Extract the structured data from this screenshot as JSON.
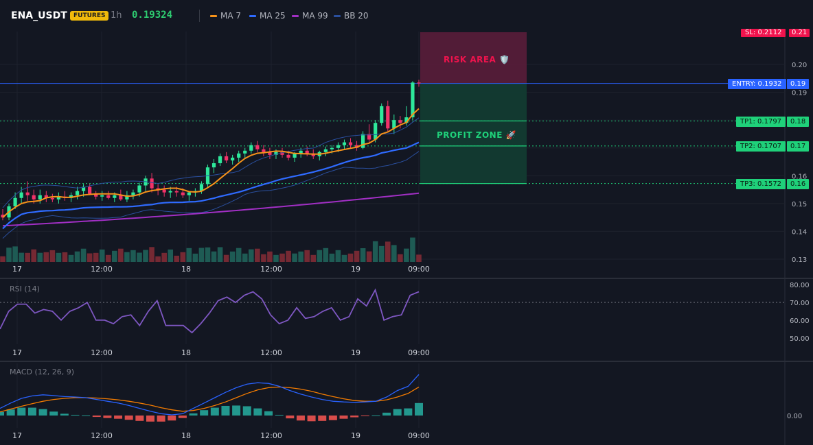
{
  "header": {
    "symbol": "ENA_USDT",
    "badge": "FUTURES",
    "timeframe": "1h",
    "last_price": "0.19324",
    "legend": [
      {
        "label": "MA 7",
        "color": "#f7931a"
      },
      {
        "label": "MA 25",
        "color": "#2f6bff"
      },
      {
        "label": "MA 99",
        "color": "#a12fc4"
      },
      {
        "label": "BB 20",
        "color": "#2a4f9e"
      }
    ]
  },
  "colors": {
    "up": "#26a69a",
    "up_bright": "#2ee89b",
    "down": "#f23269",
    "risk_zone": "#5a1d3a",
    "profit_zone": "#123b31",
    "entry": "#2962ff",
    "tp": "#1fd17a",
    "sl": "#f0134d",
    "rsi": "#7e57c2",
    "macd": "#2962ff",
    "signal": "#f57c00",
    "hist_pos": "#26a69a",
    "hist_neg": "#ef5350"
  },
  "zones": {
    "risk_label": "RISK AREA 🛡️",
    "profit_label": "PROFIT ZONE 🚀"
  },
  "levels": {
    "entry": {
      "label": "ENTRY: 0.1932",
      "value": 0.1932,
      "axis": "0.19"
    },
    "tp1": {
      "label": "TP1: 0.1797",
      "value": 0.1797,
      "axis": "0.18"
    },
    "tp2": {
      "label": "TP2: 0.1707",
      "value": 0.1707,
      "axis": "0.17"
    },
    "tp3": {
      "label": "TP3: 0.1572",
      "value": 0.1572,
      "axis": "0.16"
    },
    "sl": {
      "label": "SL: 0.2112",
      "value": 0.2112,
      "axis": "0.21"
    }
  },
  "panels": {
    "rsi_title": "RSI (14)",
    "macd_title": "MACD (12, 26, 9)"
  },
  "chart_data": [
    {
      "type": "candlestick",
      "title": "",
      "price_axis_ticks": [
        "0.20",
        "0.19",
        "0.18",
        "0.17",
        "0.16",
        "0.15",
        "0.14",
        "0.13"
      ],
      "time_axis_ticks": [
        "17",
        "12:00",
        "18",
        "12:00",
        "19",
        "09:00"
      ],
      "ylim": [
        0.13,
        0.2112
      ],
      "candles_ohlc": [
        [
          0.146,
          0.148,
          0.144,
          0.145
        ],
        [
          0.145,
          0.15,
          0.144,
          0.149
        ],
        [
          0.149,
          0.154,
          0.148,
          0.152
        ],
        [
          0.152,
          0.156,
          0.15,
          0.154
        ],
        [
          0.154,
          0.158,
          0.151,
          0.153
        ],
        [
          0.153,
          0.155,
          0.15,
          0.1515
        ],
        [
          0.1515,
          0.155,
          0.15,
          0.153
        ],
        [
          0.153,
          0.1545,
          0.1505,
          0.152
        ],
        [
          0.152,
          0.1535,
          0.1505,
          0.1515
        ],
        [
          0.1515,
          0.154,
          0.15,
          0.1525
        ],
        [
          0.1525,
          0.1545,
          0.151,
          0.152
        ],
        [
          0.152,
          0.154,
          0.1505,
          0.153
        ],
        [
          0.153,
          0.156,
          0.1515,
          0.1545
        ],
        [
          0.1545,
          0.157,
          0.1525,
          0.156
        ],
        [
          0.156,
          0.157,
          0.153,
          0.1535
        ],
        [
          0.1535,
          0.1545,
          0.1515,
          0.1525
        ],
        [
          0.1525,
          0.1545,
          0.151,
          0.153
        ],
        [
          0.153,
          0.1545,
          0.1515,
          0.152
        ],
        [
          0.152,
          0.154,
          0.1505,
          0.153
        ],
        [
          0.153,
          0.155,
          0.151,
          0.1515
        ],
        [
          0.1515,
          0.1545,
          0.1505,
          0.153
        ],
        [
          0.153,
          0.155,
          0.1515,
          0.154
        ],
        [
          0.154,
          0.1575,
          0.1525,
          0.1565
        ],
        [
          0.1565,
          0.16,
          0.1545,
          0.159
        ],
        [
          0.159,
          0.161,
          0.154,
          0.1555
        ],
        [
          0.1555,
          0.157,
          0.153,
          0.155
        ],
        [
          0.155,
          0.1565,
          0.1525,
          0.154
        ],
        [
          0.154,
          0.156,
          0.152,
          0.1545
        ],
        [
          0.1545,
          0.156,
          0.1525,
          0.154
        ],
        [
          0.154,
          0.1555,
          0.152,
          0.153
        ],
        [
          0.153,
          0.1545,
          0.151,
          0.154
        ],
        [
          0.154,
          0.1555,
          0.1525,
          0.1545
        ],
        [
          0.1545,
          0.158,
          0.1535,
          0.157
        ],
        [
          0.157,
          0.164,
          0.156,
          0.163
        ],
        [
          0.163,
          0.166,
          0.161,
          0.1645
        ],
        [
          0.1645,
          0.168,
          0.1635,
          0.167
        ],
        [
          0.167,
          0.1685,
          0.1645,
          0.1655
        ],
        [
          0.1655,
          0.1675,
          0.164,
          0.1665
        ],
        [
          0.1665,
          0.169,
          0.165,
          0.168
        ],
        [
          0.168,
          0.17,
          0.166,
          0.169
        ],
        [
          0.169,
          0.172,
          0.168,
          0.171
        ],
        [
          0.171,
          0.1725,
          0.1685,
          0.1695
        ],
        [
          0.1695,
          0.171,
          0.167,
          0.1685
        ],
        [
          0.1685,
          0.17,
          0.166,
          0.1675
        ],
        [
          0.1675,
          0.1695,
          0.166,
          0.1685
        ],
        [
          0.1685,
          0.17,
          0.1665,
          0.1675
        ],
        [
          0.1675,
          0.169,
          0.1655,
          0.1665
        ],
        [
          0.1665,
          0.1685,
          0.165,
          0.168
        ],
        [
          0.168,
          0.17,
          0.1665,
          0.169
        ],
        [
          0.169,
          0.1705,
          0.167,
          0.168
        ],
        [
          0.168,
          0.1695,
          0.166,
          0.167
        ],
        [
          0.167,
          0.169,
          0.1655,
          0.1685
        ],
        [
          0.1685,
          0.1705,
          0.167,
          0.1695
        ],
        [
          0.1695,
          0.171,
          0.168,
          0.17
        ],
        [
          0.17,
          0.172,
          0.1685,
          0.171
        ],
        [
          0.171,
          0.173,
          0.1695,
          0.172
        ],
        [
          0.172,
          0.1735,
          0.17,
          0.171
        ],
        [
          0.171,
          0.1725,
          0.169,
          0.17
        ],
        [
          0.17,
          0.176,
          0.1695,
          0.175
        ],
        [
          0.175,
          0.1785,
          0.172,
          0.173
        ],
        [
          0.173,
          0.18,
          0.172,
          0.179
        ],
        [
          0.179,
          0.186,
          0.178,
          0.185
        ],
        [
          0.185,
          0.187,
          0.176,
          0.177
        ],
        [
          0.177,
          0.182,
          0.175,
          0.18
        ],
        [
          0.18,
          0.1815,
          0.177,
          0.179
        ],
        [
          0.179,
          0.185,
          0.178,
          0.181
        ],
        [
          0.181,
          0.194,
          0.18,
          0.1935
        ],
        [
          0.1935,
          0.1945,
          0.192,
          0.1932
        ]
      ],
      "volume_direction": "colored by candle direction"
    },
    {
      "type": "line",
      "title": "RSI (14)",
      "ylim": [
        48,
        82
      ],
      "y_ticks": [
        "80.00",
        "70.00",
        "60.00",
        "50.00"
      ],
      "overbought_level": 70,
      "values": [
        55,
        65,
        69,
        69,
        64,
        66,
        65,
        60,
        65,
        67,
        70,
        60,
        60,
        58,
        62,
        63,
        57,
        65,
        71,
        57,
        57,
        57,
        53,
        58,
        64,
        71,
        73,
        70,
        74,
        76,
        72,
        63,
        58,
        60,
        67,
        61,
        62,
        65,
        67,
        60,
        62,
        72,
        68,
        77,
        60,
        62,
        63,
        74,
        76
      ]
    },
    {
      "type": "line",
      "title": "MACD (12, 26, 9)",
      "y_ticks": [
        "0.00"
      ],
      "series": [
        {
          "role": "macd",
          "values": [
            0.2,
            0.35,
            0.48,
            0.55,
            0.58,
            0.56,
            0.53,
            0.52,
            0.5,
            0.45,
            0.4,
            0.35,
            0.28,
            0.2,
            0.12,
            0.05,
            0.02,
            0.05,
            0.2,
            0.35,
            0.5,
            0.65,
            0.78,
            0.88,
            0.92,
            0.9,
            0.82,
            0.7,
            0.6,
            0.52,
            0.45,
            0.4,
            0.38,
            0.37,
            0.38,
            0.4,
            0.52,
            0.7,
            0.82,
            1.15
          ]
        },
        {
          "role": "signal",
          "values": [
            0.1,
            0.18,
            0.26,
            0.33,
            0.4,
            0.45,
            0.48,
            0.5,
            0.5,
            0.49,
            0.47,
            0.44,
            0.4,
            0.35,
            0.29,
            0.22,
            0.16,
            0.12,
            0.14,
            0.2,
            0.28,
            0.38,
            0.5,
            0.62,
            0.72,
            0.78,
            0.8,
            0.78,
            0.74,
            0.68,
            0.6,
            0.53,
            0.47,
            0.42,
            0.4,
            0.4,
            0.44,
            0.52,
            0.62,
            0.8
          ]
        }
      ],
      "histogram": [
        0.1,
        0.17,
        0.22,
        0.22,
        0.18,
        0.11,
        0.05,
        0.02,
        0.0,
        -0.04,
        -0.07,
        -0.09,
        -0.12,
        -0.15,
        -0.17,
        -0.17,
        -0.14,
        -0.07,
        0.06,
        0.15,
        0.22,
        0.27,
        0.28,
        0.26,
        0.2,
        0.12,
        0.02,
        -0.08,
        -0.14,
        -0.16,
        -0.15,
        -0.13,
        -0.09,
        -0.05,
        -0.02,
        0.0,
        0.08,
        0.18,
        0.2,
        0.35
      ]
    }
  ]
}
